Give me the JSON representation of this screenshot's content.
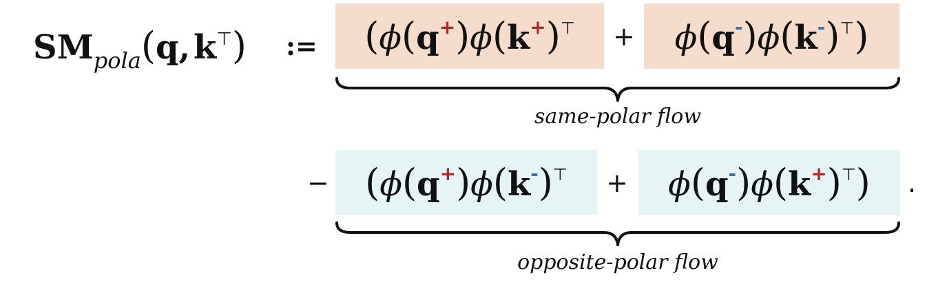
{
  "lhs": {
    "name": "SM",
    "subscript": "pola",
    "open_paren": "(",
    "q": "q",
    "comma": ",",
    "k": "k",
    "transpose": "⊤",
    "close_paren": ")"
  },
  "assign_symbol": ":=",
  "row1": {
    "term1": {
      "open_outer": "(",
      "phi": "ϕ",
      "lp": "(",
      "q": "q",
      "q_pol": "+",
      "rp": ")",
      "phi2": "ϕ",
      "lp2": "(",
      "k": "k",
      "k_pol": "+",
      "rp2": ")",
      "transpose": "⊤"
    },
    "plus": "+",
    "term2": {
      "phi": "ϕ",
      "lp": "(",
      "q": "q",
      "q_pol": "-",
      "rp": ")",
      "phi2": "ϕ",
      "lp2": "(",
      "k": "k",
      "k_pol": "-",
      "rp2": ")",
      "transpose": "⊤",
      "close_outer": ")"
    },
    "caption": "same-polar flow"
  },
  "row2": {
    "minus": "−",
    "term1": {
      "open_outer": "(",
      "phi": "ϕ",
      "lp": "(",
      "q": "q",
      "q_pol": "+",
      "rp": ")",
      "phi2": "ϕ",
      "lp2": "(",
      "k": "k",
      "k_pol": "-",
      "rp2": ")",
      "transpose": "⊤"
    },
    "plus": "+",
    "term2": {
      "phi": "ϕ",
      "lp": "(",
      "q": "q",
      "q_pol": "-",
      "rp": ")",
      "phi2": "ϕ",
      "lp2": "(",
      "k": "k",
      "k_pol": "+",
      "rp2": ")",
      "transpose": "⊤",
      "close_outer": ")"
    },
    "period": ".",
    "caption": "opposite-polar flow"
  },
  "colors": {
    "same_polar_box": "#f5dccb",
    "opposite_polar_box": "#e6f4f6",
    "positive_sign": "#b0282a",
    "negative_sign": "#3b74a8"
  }
}
